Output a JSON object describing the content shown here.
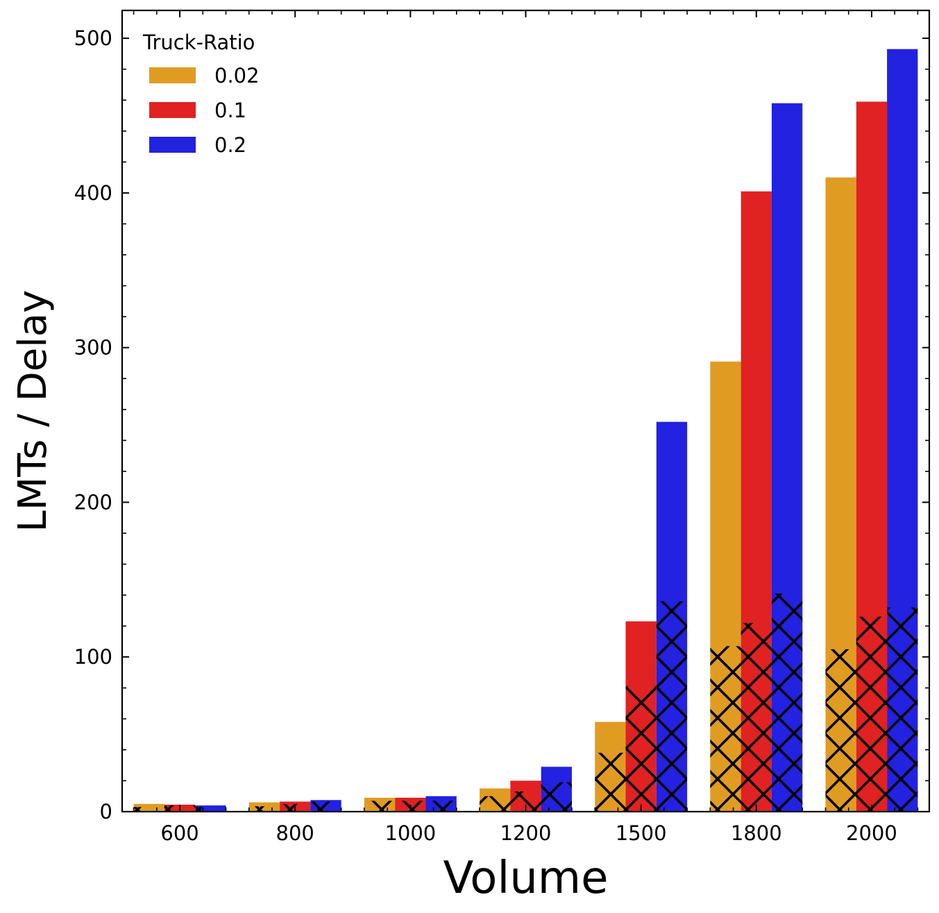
{
  "chart_data": {
    "type": "bar",
    "xlabel": "Volume",
    "ylabel": "LMTs / Delay",
    "categories": [
      "600",
      "800",
      "1000",
      "1200",
      "1500",
      "1800",
      "2000"
    ],
    "ylim": [
      0,
      518
    ],
    "yticks": [
      0,
      100,
      200,
      300,
      400,
      500
    ],
    "grid": false,
    "legend": {
      "title": "Truck-Ratio",
      "placement": "top-left"
    },
    "series": [
      {
        "name": "0.02",
        "color": "#e09c22",
        "values": [
          5,
          6,
          9,
          15,
          58,
          291,
          410
        ],
        "hatched_values": [
          3,
          3.5,
          7,
          10,
          38,
          107,
          105
        ]
      },
      {
        "name": "0.1",
        "color": "#e02222",
        "values": [
          4.5,
          6.5,
          9,
          20,
          123,
          401,
          459
        ],
        "hatched_values": [
          4,
          5,
          7,
          13,
          81,
          122,
          126
        ]
      },
      {
        "name": "0.2",
        "color": "#2222e0",
        "values": [
          4,
          7.5,
          10,
          29,
          252,
          458,
          493
        ],
        "hatched_values": [
          3,
          6.5,
          7,
          19,
          136,
          141,
          132
        ]
      }
    ],
    "hatch_pattern": "x"
  }
}
